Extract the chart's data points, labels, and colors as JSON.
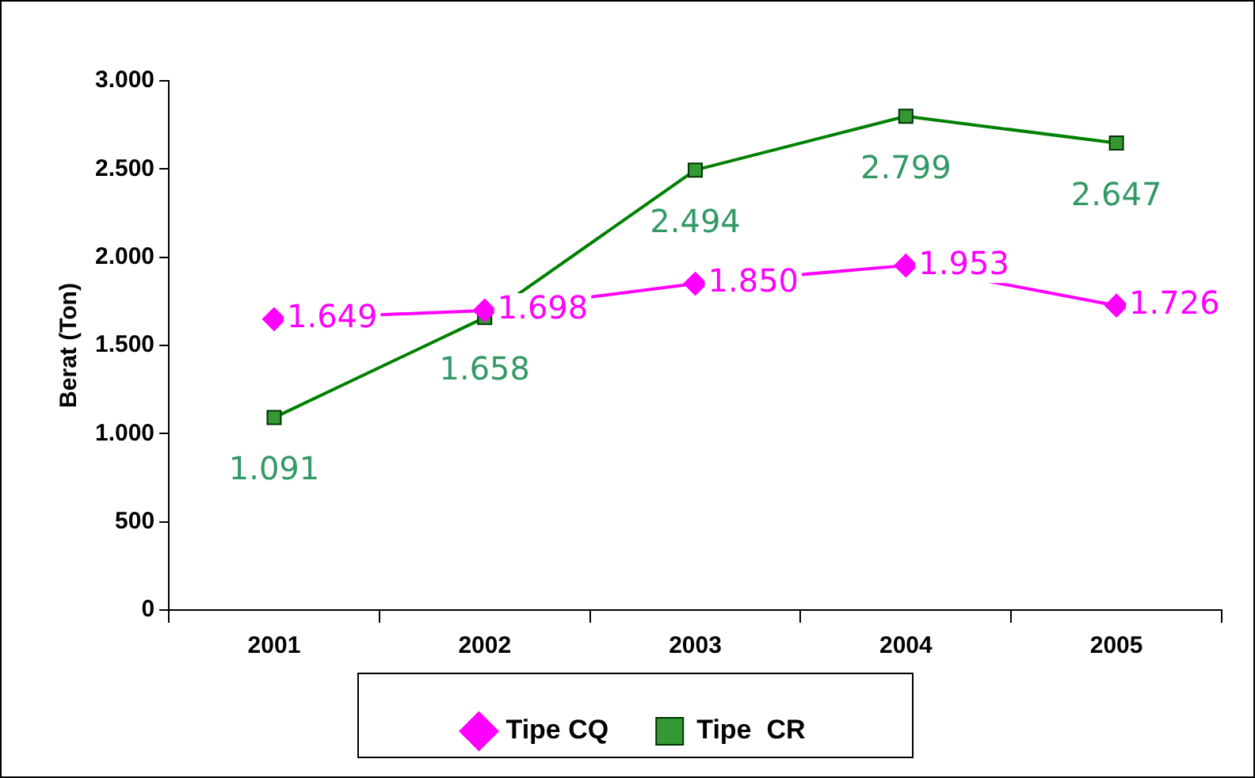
{
  "chart_data": {
    "type": "line",
    "ylabel": "Berat (Ton)",
    "categories": [
      "2001",
      "2002",
      "2003",
      "2004",
      "2005"
    ],
    "series": [
      {
        "name": "Tipe CQ",
        "color": "#ff00ff",
        "marker": "diamond",
        "values": [
          1649,
          1698,
          1850,
          1953,
          1726
        ],
        "value_labels": [
          "1.649",
          "1.698",
          "1.850",
          "1.953",
          "1.726"
        ]
      },
      {
        "name": "Tipe  CR",
        "color": "#008000",
        "marker": "square",
        "values": [
          1091,
          1658,
          2494,
          2799,
          2647
        ],
        "value_labels": [
          "1.091",
          "1.658",
          "2.494",
          "2.799",
          "2.647"
        ]
      }
    ],
    "ylim": [
      0,
      3000
    ],
    "yticks": [
      {
        "value": 0,
        "label": "0"
      },
      {
        "value": 500,
        "label": "500"
      },
      {
        "value": 1000,
        "label": "1.000"
      },
      {
        "value": 1500,
        "label": "1.500"
      },
      {
        "value": 2000,
        "label": "2.000"
      },
      {
        "value": 2500,
        "label": "2.500"
      },
      {
        "value": 3000,
        "label": "3.000"
      }
    ],
    "grid": false,
    "legend": "bottom",
    "line_style": "solid"
  }
}
